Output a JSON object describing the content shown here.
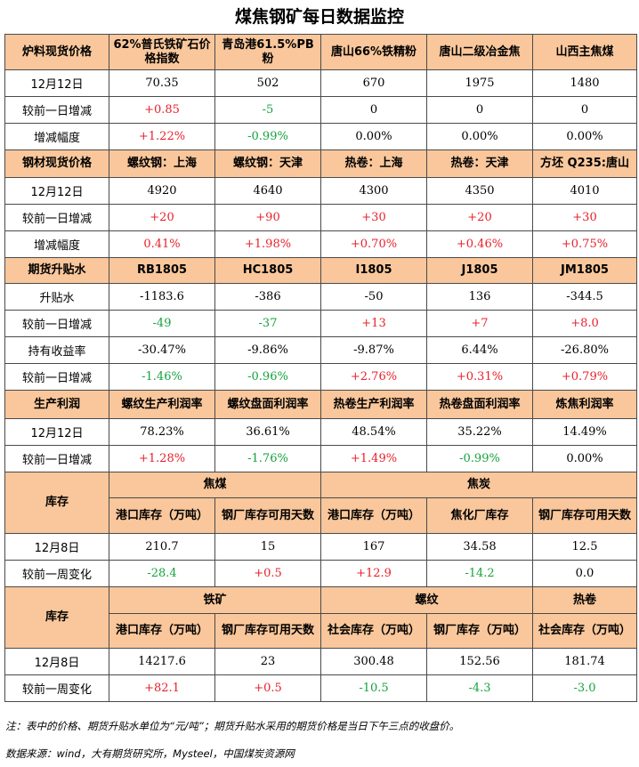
{
  "title": "煤焦钢矿每日数据监控",
  "s1": {
    "headers": [
      "炉料现货价格",
      "62%普氏铁矿石价格指数",
      "青岛港61.5%PB粉",
      "唐山66%铁精粉",
      "唐山二级冶金焦",
      "山西主焦煤"
    ],
    "rows": [
      {
        "label": "12月12日",
        "cells": [
          {
            "v": "70.35",
            "c": "black"
          },
          {
            "v": "502",
            "c": "black"
          },
          {
            "v": "670",
            "c": "black"
          },
          {
            "v": "1975",
            "c": "black"
          },
          {
            "v": "1480",
            "c": "black"
          }
        ]
      },
      {
        "label": "较前一日增减",
        "cells": [
          {
            "v": "+0.85",
            "c": "red"
          },
          {
            "v": "-5",
            "c": "green"
          },
          {
            "v": "0",
            "c": "black"
          },
          {
            "v": "0",
            "c": "black"
          },
          {
            "v": "0",
            "c": "black"
          }
        ]
      },
      {
        "label": "增减幅度",
        "cells": [
          {
            "v": "+1.22%",
            "c": "red"
          },
          {
            "v": "-0.99%",
            "c": "green"
          },
          {
            "v": "0.00%",
            "c": "black"
          },
          {
            "v": "0.00%",
            "c": "black"
          },
          {
            "v": "0.00%",
            "c": "black"
          }
        ]
      }
    ]
  },
  "s2": {
    "headers": [
      "钢材现货价格",
      "螺纹钢：上海",
      "螺纹钢：天津",
      "热卷：上海",
      "热卷：天津",
      "方坯 Q235:唐山"
    ],
    "rows": [
      {
        "label": "12月12日",
        "cells": [
          {
            "v": "4920",
            "c": "black"
          },
          {
            "v": "4640",
            "c": "black"
          },
          {
            "v": "4300",
            "c": "black"
          },
          {
            "v": "4350",
            "c": "black"
          },
          {
            "v": "4010",
            "c": "black"
          }
        ]
      },
      {
        "label": "较前一日增减",
        "cells": [
          {
            "v": "+20",
            "c": "red"
          },
          {
            "v": "+90",
            "c": "red"
          },
          {
            "v": "+30",
            "c": "red"
          },
          {
            "v": "+20",
            "c": "red"
          },
          {
            "v": "+30",
            "c": "red"
          }
        ]
      },
      {
        "label": "增减幅度",
        "cells": [
          {
            "v": "0.41%",
            "c": "red"
          },
          {
            "v": "+1.98%",
            "c": "red"
          },
          {
            "v": "+0.70%",
            "c": "red"
          },
          {
            "v": "+0.46%",
            "c": "red"
          },
          {
            "v": "+0.75%",
            "c": "red"
          }
        ]
      }
    ]
  },
  "s3": {
    "headers": [
      "期货升贴水",
      "RB1805",
      "HC1805",
      "I1805",
      "J1805",
      "JM1805"
    ],
    "rows": [
      {
        "label": "升贴水",
        "cells": [
          {
            "v": "-1183.6",
            "c": "black"
          },
          {
            "v": "-386",
            "c": "black"
          },
          {
            "v": "-50",
            "c": "black"
          },
          {
            "v": "136",
            "c": "black"
          },
          {
            "v": "-344.5",
            "c": "black"
          }
        ]
      },
      {
        "label": "较前一日增减",
        "cells": [
          {
            "v": "-49",
            "c": "green"
          },
          {
            "v": "-37",
            "c": "green"
          },
          {
            "v": "+13",
            "c": "red"
          },
          {
            "v": "+7",
            "c": "red"
          },
          {
            "v": "+8.0",
            "c": "red"
          }
        ]
      },
      {
        "label": "持有收益率",
        "cells": [
          {
            "v": "-30.47%",
            "c": "black"
          },
          {
            "v": "-9.86%",
            "c": "black"
          },
          {
            "v": "-9.87%",
            "c": "black"
          },
          {
            "v": "6.44%",
            "c": "black"
          },
          {
            "v": "-26.80%",
            "c": "black"
          }
        ]
      },
      {
        "label": "较前一日增减",
        "cells": [
          {
            "v": "-1.46%",
            "c": "green"
          },
          {
            "v": "-0.96%",
            "c": "green"
          },
          {
            "v": "+2.76%",
            "c": "red"
          },
          {
            "v": "+0.31%",
            "c": "red"
          },
          {
            "v": "+0.79%",
            "c": "red"
          }
        ]
      }
    ]
  },
  "s4": {
    "headers": [
      "生产利润",
      "螺纹生产利润率",
      "螺纹盘面利润率",
      "热卷生产利润率",
      "热卷盘面利润率",
      "炼焦利润率"
    ],
    "rows": [
      {
        "label": "12月12日",
        "cells": [
          {
            "v": "78.23%",
            "c": "black"
          },
          {
            "v": "36.61%",
            "c": "black"
          },
          {
            "v": "48.54%",
            "c": "black"
          },
          {
            "v": "35.22%",
            "c": "black"
          },
          {
            "v": "14.49%",
            "c": "black"
          }
        ]
      },
      {
        "label": "较前一日增减",
        "cells": [
          {
            "v": "+1.28%",
            "c": "red"
          },
          {
            "v": "-1.76%",
            "c": "green"
          },
          {
            "v": "+1.49%",
            "c": "red"
          },
          {
            "v": "-0.99%",
            "c": "green"
          },
          {
            "v": "0.00%",
            "c": "black"
          }
        ]
      }
    ]
  },
  "s5": {
    "label": "库存",
    "groups": [
      "焦煤",
      "焦炭"
    ],
    "subheaders": [
      "港口库存（万吨）",
      "钢厂库存可用天数",
      "港口库存（万吨）",
      "焦化厂库存",
      "钢厂库存可用天数"
    ],
    "rows": [
      {
        "label": "12月8日",
        "cells": [
          {
            "v": "210.7",
            "c": "black"
          },
          {
            "v": "15",
            "c": "black"
          },
          {
            "v": "167",
            "c": "black"
          },
          {
            "v": "34.58",
            "c": "black"
          },
          {
            "v": "12.5",
            "c": "black"
          }
        ]
      },
      {
        "label": "较前一周变化",
        "cells": [
          {
            "v": "-28.4",
            "c": "green"
          },
          {
            "v": "+0.5",
            "c": "red"
          },
          {
            "v": "+12.9",
            "c": "red"
          },
          {
            "v": "-14.2",
            "c": "green"
          },
          {
            "v": "0.0",
            "c": "black"
          }
        ]
      }
    ]
  },
  "s6": {
    "label": "库存",
    "groups": [
      "铁矿",
      "螺纹",
      "热卷"
    ],
    "subheaders": [
      "港口库存（万吨）",
      "钢厂库存可用天数",
      "社会库存（万吨）",
      "钢厂库存（万吨）",
      "社会库存（万吨）"
    ],
    "rows": [
      {
        "label": "12月8日",
        "cells": [
          {
            "v": "14217.6",
            "c": "black"
          },
          {
            "v": "23",
            "c": "black"
          },
          {
            "v": "300.48",
            "c": "black"
          },
          {
            "v": "152.56",
            "c": "black"
          },
          {
            "v": "181.74",
            "c": "black"
          }
        ]
      },
      {
        "label": "较前一周变化",
        "cells": [
          {
            "v": "+82.1",
            "c": "red"
          },
          {
            "v": "+0.5",
            "c": "red"
          },
          {
            "v": "-10.5",
            "c": "green"
          },
          {
            "v": "-4.3",
            "c": "green"
          },
          {
            "v": "-3.0",
            "c": "green"
          }
        ]
      }
    ]
  },
  "notes": {
    "note": "注：表中的价格、期货升贴水单位为“元/吨”；期货升贴水采用的期货价格是当日下午三点的收盘价。",
    "source": "数据来源：wind，大有期货研究所，Mysteel，中国煤炭资源网"
  },
  "colors": {
    "header_bg": "#f9c79b",
    "up": "#e8202a",
    "down": "#14a33c",
    "border": "#4a4a4a"
  }
}
